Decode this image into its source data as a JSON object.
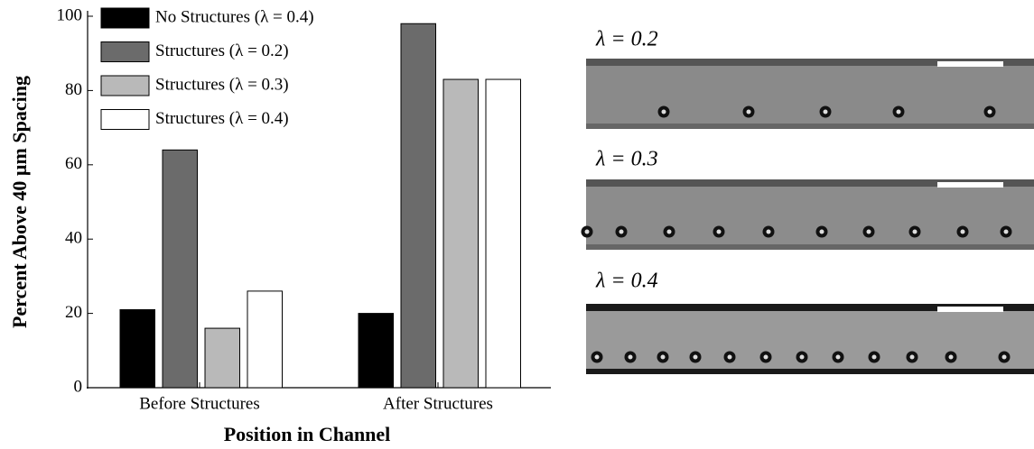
{
  "chart_data": {
    "type": "bar",
    "ylabel": "Percent Above 40 µm Spacing",
    "xlabel": "Position in Channel",
    "categories": [
      "Before Structures",
      "After Structures"
    ],
    "series": [
      {
        "name": "No Structures (λ = 0.4)",
        "color": "#000000",
        "values": [
          21,
          20
        ]
      },
      {
        "name": "Structures (λ = 0.2)",
        "color": "#6b6b6b",
        "values": [
          64,
          98
        ]
      },
      {
        "name": "Structures (λ = 0.3)",
        "color": "#b9b9b9",
        "values": [
          16,
          83
        ]
      },
      {
        "name": "Structures (λ = 0.4)",
        "color": "#ffffff",
        "values": [
          26,
          83
        ]
      }
    ],
    "ylim": [
      0,
      100
    ],
    "yticks": [
      0,
      20,
      40,
      60,
      80,
      100
    ],
    "grid": false,
    "legend": "upper left"
  },
  "panels": [
    {
      "label": "λ = 0.2"
    },
    {
      "label": "λ = 0.3"
    },
    {
      "label": "λ = 0.4"
    }
  ]
}
